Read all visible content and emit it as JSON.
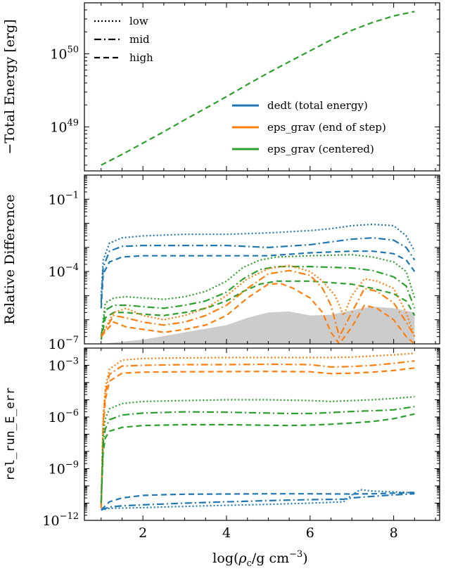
{
  "colors": {
    "dedt": "#1f77b4",
    "eps_end": "#ff7f0e",
    "eps_cent": "#2ca02c",
    "band": "#cccccc",
    "axis": "#000000"
  },
  "line_styles": {
    "low": "dotted",
    "mid": "dash-dot",
    "high": "dashed"
  },
  "chart_data": [
    {
      "type": "line",
      "ylabel": "−Total Energy [erg]",
      "yscale": "log",
      "ylim": [
        2.5e+48,
        5e+50
      ],
      "xlim": [
        0.6,
        9.1
      ],
      "yticks": [
        {
          "v": 1e+49,
          "label": "10",
          "exp": "49"
        },
        {
          "v": 1e+50,
          "label": "10",
          "exp": "50"
        }
      ],
      "linestyle_legend": [
        {
          "label": "low",
          "style": "low"
        },
        {
          "label": "mid",
          "style": "mid"
        },
        {
          "label": "high",
          "style": "high"
        }
      ],
      "color_legend": [
        {
          "label": "dedt (total energy)",
          "color": "dedt"
        },
        {
          "label": "eps_grav (end of step)",
          "color": "eps_end"
        },
        {
          "label": "eps_grav (centered)",
          "color": "eps_cent"
        }
      ],
      "series": [
        {
          "color": "eps_cent",
          "style": "high",
          "x": [
            1.0,
            1.5,
            2.0,
            2.5,
            3.0,
            3.5,
            4.0,
            4.5,
            5.0,
            5.5,
            6.0,
            6.5,
            7.0,
            7.5,
            8.0,
            8.5
          ],
          "y": [
            3e+48,
            4.2e+48,
            6e+48,
            8.6e+48,
            1.25e+49,
            1.8e+49,
            2.6e+49,
            3.8e+49,
            5.5e+49,
            7.8e+49,
            1.1e+50,
            1.55e+50,
            2.1e+50,
            2.7e+50,
            3.3e+50,
            3.8e+50
          ]
        }
      ]
    },
    {
      "type": "line",
      "ylabel": "Relative Difference",
      "yscale": "log",
      "ylim": [
        1e-07,
        1.0
      ],
      "xlim": [
        0.6,
        9.1
      ],
      "yticks": [
        {
          "v": 1e-07,
          "label": "10",
          "exp": "−7"
        },
        {
          "v": 0.0001,
          "label": "10",
          "exp": "−4"
        },
        {
          "v": 0.1,
          "label": "10",
          "exp": "−1"
        }
      ],
      "shaded_band": {
        "x": [
          1.0,
          2.0,
          3.0,
          4.0,
          4.5,
          5.0,
          5.5,
          6.0,
          6.5,
          7.0,
          7.5,
          8.0,
          8.5
        ],
        "y": [
          1e-07,
          1.5e-07,
          3e-07,
          6e-07,
          1.2e-06,
          2e-06,
          2.2e-06,
          1.5e-06,
          1.6e-06,
          2.5e-06,
          3.5e-06,
          3e-06,
          2e-06
        ]
      },
      "series": [
        {
          "color": "dedt",
          "style": "low",
          "x": [
            1.0,
            1.05,
            1.2,
            1.5,
            2.0,
            3.0,
            4.0,
            5.0,
            6.0,
            6.5,
            7.0,
            7.5,
            8.0,
            8.3,
            8.5
          ],
          "y": [
            1e-05,
            0.0003,
            0.0015,
            0.0025,
            0.003,
            0.0035,
            0.0035,
            0.004,
            0.005,
            0.006,
            0.008,
            0.009,
            0.008,
            0.003,
            0.0007
          ]
        },
        {
          "color": "dedt",
          "style": "mid",
          "x": [
            1.0,
            1.05,
            1.2,
            1.5,
            2.0,
            3.0,
            4.0,
            5.0,
            6.0,
            6.5,
            7.0,
            7.5,
            8.0,
            8.3,
            8.5
          ],
          "y": [
            5e-06,
            0.00015,
            0.0007,
            0.0011,
            0.0012,
            0.0012,
            0.0012,
            0.001,
            0.0013,
            0.0017,
            0.0022,
            0.0025,
            0.002,
            0.001,
            0.0003
          ]
        },
        {
          "color": "dedt",
          "style": "high",
          "x": [
            1.0,
            1.05,
            1.2,
            1.5,
            2.0,
            3.0,
            4.0,
            5.0,
            6.0,
            7.0,
            7.5,
            8.0,
            8.3,
            8.5
          ],
          "y": [
            3e-06,
            8e-05,
            0.00025,
            0.0004,
            0.00045,
            0.00045,
            0.00045,
            0.00045,
            0.0006,
            0.0007,
            0.0007,
            0.00055,
            0.0003,
            0.0001
          ]
        },
        {
          "color": "eps_cent",
          "style": "low",
          "x": [
            1.0,
            1.1,
            1.3,
            1.6,
            2.0,
            2.5,
            3.0,
            3.5,
            4.0,
            4.4,
            4.8,
            5.2,
            6.0,
            7.0,
            7.5,
            8.0,
            8.3,
            8.5
          ],
          "y": [
            2e-07,
            5e-06,
            8e-06,
            9e-06,
            8e-06,
            7e-06,
            9e-06,
            1.5e-05,
            4e-05,
            0.00015,
            0.0003,
            0.0004,
            0.00045,
            0.0005,
            0.0004,
            0.00025,
            0.0001,
            8e-06
          ]
        },
        {
          "color": "eps_cent",
          "style": "mid",
          "x": [
            1.0,
            1.1,
            1.3,
            1.6,
            2.0,
            2.5,
            3.0,
            3.5,
            4.0,
            4.4,
            4.8,
            5.2,
            6.0,
            7.0,
            7.5,
            8.0,
            8.3,
            8.5
          ],
          "y": [
            2e-07,
            2.5e-06,
            4e-06,
            4e-06,
            3.5e-06,
            3e-06,
            4e-06,
            6e-06,
            1.4e-05,
            5e-05,
            0.00012,
            0.00016,
            0.00016,
            0.00014,
            0.00011,
            6e-05,
            2.5e-05,
            3e-06
          ]
        },
        {
          "color": "eps_cent",
          "style": "high",
          "x": [
            1.0,
            1.1,
            1.3,
            1.6,
            2.0,
            2.5,
            3.0,
            3.5,
            4.0,
            4.4,
            4.8,
            5.2,
            6.0,
            7.0,
            7.5,
            8.0,
            8.3,
            8.5
          ],
          "y": [
            1.5e-07,
            1.2e-06,
            2e-06,
            2e-06,
            1.7e-06,
            1.5e-06,
            2e-06,
            3e-06,
            6e-06,
            1.5e-05,
            3e-05,
            4e-05,
            4e-05,
            3e-05,
            2e-05,
            1.2e-05,
            6e-06,
            1.5e-06
          ]
        },
        {
          "color": "eps_end",
          "style": "low",
          "x": [
            1.0,
            1.3,
            1.6,
            2.0,
            2.5,
            3.0,
            3.5,
            4.0,
            4.5,
            5.0,
            5.5,
            6.0,
            6.3,
            6.6,
            6.8,
            7.0,
            7.3,
            7.6,
            8.0,
            8.3,
            8.5
          ],
          "y": [
            2e-07,
            2e-06,
            3e-06,
            1.5e-06,
            1e-06,
            1.5e-06,
            3e-06,
            1e-05,
            5e-05,
            0.00013,
            0.00018,
            0.0001,
            4e-05,
            1e-05,
            1.5e-06,
            1e-05,
            5e-05,
            4e-05,
            2e-05,
            2e-06,
            2e-07
          ]
        },
        {
          "color": "eps_end",
          "style": "mid",
          "x": [
            1.0,
            1.3,
            1.6,
            2.0,
            2.5,
            3.0,
            3.5,
            4.0,
            4.5,
            5.0,
            5.5,
            6.0,
            6.3,
            6.5,
            6.7,
            7.0,
            7.3,
            7.6,
            8.0,
            8.3,
            8.5
          ],
          "y": [
            2e-07,
            1.5e-06,
            1.2e-06,
            8e-07,
            6e-07,
            8e-07,
            1.5e-06,
            4e-06,
            2e-05,
            8e-05,
            0.00011,
            7e-05,
            2e-05,
            4e-06,
            2e-07,
            2e-06,
            2e-05,
            1.5e-05,
            5e-06,
            8e-07,
            2e-07
          ]
        },
        {
          "color": "eps_end",
          "style": "high",
          "x": [
            1.0,
            1.3,
            1.6,
            2.0,
            2.5,
            3.0,
            3.5,
            4.0,
            4.5,
            5.0,
            5.3,
            5.6,
            6.0,
            6.3,
            6.5,
            6.7,
            7.0,
            7.3,
            7.6,
            8.0,
            8.3,
            8.5
          ],
          "y": [
            2e-07,
            8e-07,
            5e-07,
            4e-07,
            3e-07,
            4e-07,
            6e-07,
            1.5e-06,
            8e-06,
            3e-05,
            3.2e-05,
            2e-05,
            8e-06,
            2e-06,
            3e-07,
            1e-07,
            5e-07,
            4e-06,
            3e-06,
            1e-06,
            2e-07,
            1e-07
          ]
        }
      ]
    },
    {
      "type": "line",
      "ylabel": "rel_run_E_err",
      "yscale": "log",
      "ylim": [
        1e-12,
        0.01
      ],
      "xlim": [
        0.6,
        9.1
      ],
      "xlabel": "log(ρc/g cm−3)",
      "xticks": [
        {
          "v": 2,
          "label": "2"
        },
        {
          "v": 4,
          "label": "4"
        },
        {
          "v": 6,
          "label": "6"
        },
        {
          "v": 8,
          "label": "8"
        }
      ],
      "yticks": [
        {
          "v": 1e-12,
          "label": "10",
          "exp": "−12"
        },
        {
          "v": 1e-09,
          "label": "10",
          "exp": "−9"
        },
        {
          "v": 1e-06,
          "label": "10",
          "exp": "−6"
        },
        {
          "v": 0.001,
          "label": "10",
          "exp": "−3"
        }
      ],
      "series": [
        {
          "color": "eps_end",
          "style": "low",
          "x": [
            1.0,
            1.05,
            1.1,
            1.2,
            1.5,
            2.0,
            3.0,
            4.0,
            5.0,
            6.0,
            6.5,
            7.0,
            7.5,
            8.0,
            8.5
          ],
          "y": [
            1e-11,
            1e-06,
            5e-05,
            0.0006,
            0.002,
            0.0025,
            0.0027,
            0.0028,
            0.0028,
            0.0028,
            0.0028,
            0.003,
            0.0035,
            0.004,
            0.005
          ]
        },
        {
          "color": "eps_end",
          "style": "mid",
          "x": [
            1.0,
            1.05,
            1.1,
            1.2,
            1.5,
            2.0,
            3.0,
            4.0,
            5.0,
            6.0,
            6.5,
            7.0,
            7.5,
            8.0,
            8.5
          ],
          "y": [
            8e-12,
            5e-07,
            2.5e-05,
            0.0003,
            0.0009,
            0.001,
            0.0011,
            0.0011,
            0.00115,
            0.0011,
            0.0008,
            0.00085,
            0.001,
            0.0013,
            0.0018
          ]
        },
        {
          "color": "eps_end",
          "style": "high",
          "x": [
            1.0,
            1.05,
            1.1,
            1.2,
            1.5,
            2.0,
            3.0,
            4.0,
            5.0,
            6.0,
            6.5,
            7.0,
            7.5,
            8.0,
            8.5
          ],
          "y": [
            5e-12,
            2e-07,
            1e-05,
            0.00012,
            0.00035,
            0.0004,
            0.00042,
            0.00043,
            0.00044,
            0.00042,
            0.00033,
            0.00035,
            0.0004,
            0.0005,
            0.0007
          ]
        },
        {
          "color": "eps_cent",
          "style": "low",
          "x": [
            1.0,
            1.05,
            1.1,
            1.2,
            1.5,
            2.0,
            3.0,
            4.0,
            5.0,
            6.0,
            6.5,
            7.0,
            7.5,
            8.0,
            8.5
          ],
          "y": [
            1e-11,
            1e-07,
            8e-07,
            3e-06,
            6e-06,
            8e-06,
            9e-06,
            1e-05,
            1e-05,
            9e-06,
            8e-06,
            9e-06,
            1e-05,
            1.2e-05,
            1.5e-05
          ]
        },
        {
          "color": "eps_cent",
          "style": "mid",
          "x": [
            1.0,
            1.05,
            1.1,
            1.2,
            1.5,
            2.0,
            3.0,
            4.0,
            5.0,
            5.5,
            6.0,
            6.5,
            7.0,
            7.5,
            8.0,
            8.5
          ],
          "y": [
            1e-11,
            3e-08,
            2e-07,
            7e-07,
            1.3e-06,
            1.7e-06,
            2e-06,
            1.9e-06,
            1.7e-06,
            1.6e-06,
            1.6e-06,
            1.8e-06,
            2.1e-06,
            2.3e-06,
            2.6e-06,
            4e-06
          ]
        },
        {
          "color": "eps_cent",
          "style": "high",
          "x": [
            1.0,
            1.05,
            1.1,
            1.2,
            1.5,
            2.0,
            3.0,
            4.0,
            5.0,
            5.5,
            6.0,
            6.5,
            7.0,
            7.5,
            8.0,
            8.5
          ],
          "y": [
            1e-11,
            1e-08,
            6e-08,
            1.5e-07,
            2.5e-07,
            3.2e-07,
            3.6e-07,
            3.6e-07,
            3.3e-07,
            3.2e-07,
            3.4e-07,
            3.8e-07,
            4.5e-07,
            5.5e-07,
            8e-07,
            1.5e-06
          ]
        },
        {
          "color": "dedt",
          "style": "high",
          "x": [
            1.0,
            1.2,
            1.5,
            2.0,
            2.5,
            3.0,
            4.0,
            5.0,
            6.0,
            7.0,
            7.5,
            8.0,
            8.5
          ],
          "y": [
            4e-12,
            1.2e-11,
            2e-11,
            2.8e-11,
            3.1e-11,
            3.3e-11,
            3.4e-11,
            3.5e-11,
            3.5e-11,
            3.4e-11,
            3.5e-11,
            3.8e-11,
            4.2e-11
          ]
        },
        {
          "color": "dedt",
          "style": "mid",
          "x": [
            1.0,
            1.2,
            1.5,
            2.0,
            3.0,
            4.0,
            5.0,
            6.0,
            6.8,
            7.0,
            7.5,
            8.0,
            8.5
          ],
          "y": [
            4e-12,
            6e-12,
            7e-12,
            8e-12,
            1e-11,
            1.2e-11,
            1.4e-11,
            1.6e-11,
            1.7e-11,
            2e-11,
            2.5e-11,
            3e-11,
            3.5e-11
          ]
        },
        {
          "color": "dedt",
          "style": "low",
          "x": [
            1.0,
            1.2,
            1.5,
            2.0,
            3.0,
            4.0,
            5.0,
            6.0,
            6.8,
            7.0,
            7.2,
            7.5,
            8.0,
            8.5
          ],
          "y": [
            4e-12,
            5e-12,
            5.2e-12,
            5.5e-12,
            6.5e-12,
            7.5e-12,
            8.5e-12,
            1e-11,
            1.2e-11,
            3e-11,
            6e-11,
            5e-11,
            4.5e-11,
            4e-11
          ]
        }
      ]
    }
  ]
}
